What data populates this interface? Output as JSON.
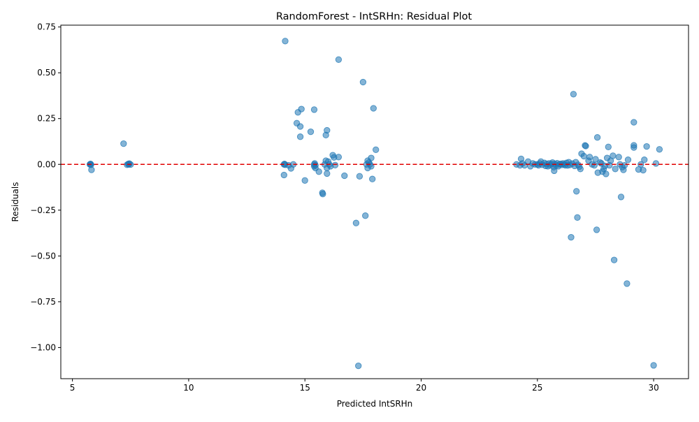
{
  "chart_data": {
    "type": "scatter",
    "title": "RandomForest - IntSRHn: Residual Plot",
    "xlabel": "Predicted IntSRHn",
    "ylabel": "Residuals",
    "xlim": [
      4.5,
      31.5
    ],
    "ylim": [
      -1.17,
      0.76
    ],
    "xticks": [
      5,
      10,
      15,
      20,
      25,
      30
    ],
    "xtick_labels": [
      "5",
      "10",
      "15",
      "20",
      "25",
      "30"
    ],
    "yticks": [
      0.75,
      0.5,
      0.25,
      0.0,
      -0.25,
      -0.5,
      -0.75,
      -1.0
    ],
    "ytick_labels": [
      "0.75",
      "0.50",
      "0.25",
      "0.00",
      "−0.25",
      "−0.50",
      "−0.75",
      "−1.00"
    ],
    "grid": false,
    "reference_line": {
      "y": 0,
      "style": "dashed",
      "color": "#e00000"
    },
    "point_color": "#1f77b4",
    "point_alpha": 0.55,
    "series": [
      {
        "points": [
          [
            5.75,
            0.0
          ],
          [
            5.78,
            0.002
          ],
          [
            5.8,
            -0.002
          ],
          [
            5.82,
            -0.03
          ],
          [
            5.77,
            0.001
          ],
          [
            7.2,
            0.113
          ],
          [
            7.35,
            -0.002
          ],
          [
            7.4,
            0.002
          ],
          [
            7.42,
            0.0
          ],
          [
            7.45,
            0.004
          ],
          [
            7.5,
            -0.001
          ],
          [
            14.1,
            0.0
          ],
          [
            14.12,
            0.002
          ],
          [
            14.15,
            -0.002
          ],
          [
            14.1,
            -0.058
          ],
          [
            14.15,
            0.673
          ],
          [
            14.3,
            -0.005
          ],
          [
            14.4,
            -0.022
          ],
          [
            14.5,
            0.0
          ],
          [
            14.65,
            0.225
          ],
          [
            14.7,
            0.284
          ],
          [
            14.8,
            0.207
          ],
          [
            14.8,
            0.151
          ],
          [
            14.85,
            0.302
          ],
          [
            15.0,
            -0.088
          ],
          [
            15.25,
            0.178
          ],
          [
            15.4,
            0.0
          ],
          [
            15.4,
            -0.01
          ],
          [
            15.42,
            0.005
          ],
          [
            15.45,
            -0.005
          ],
          [
            15.4,
            0.299
          ],
          [
            15.45,
            -0.02
          ],
          [
            15.6,
            -0.04
          ],
          [
            15.75,
            -0.155
          ],
          [
            15.77,
            -0.162
          ],
          [
            15.85,
            0.0
          ],
          [
            15.9,
            0.16
          ],
          [
            15.9,
            0.02
          ],
          [
            15.95,
            0.186
          ],
          [
            15.95,
            -0.05
          ],
          [
            15.95,
            -0.02
          ],
          [
            16.0,
            0.015
          ],
          [
            16.05,
            0.0
          ],
          [
            16.1,
            -0.01
          ],
          [
            16.2,
            0.05
          ],
          [
            16.25,
            0.038
          ],
          [
            16.3,
            -0.004
          ],
          [
            16.45,
            0.572
          ],
          [
            16.45,
            0.04
          ],
          [
            16.7,
            -0.062
          ],
          [
            17.2,
            -0.32
          ],
          [
            17.3,
            -1.1
          ],
          [
            17.35,
            -0.065
          ],
          [
            17.5,
            0.449
          ],
          [
            17.6,
            -0.28
          ],
          [
            17.65,
            0.0
          ],
          [
            17.7,
            0.02
          ],
          [
            17.7,
            -0.02
          ],
          [
            17.75,
            0.01
          ],
          [
            17.8,
            0.0
          ],
          [
            17.85,
            -0.01
          ],
          [
            17.85,
            0.035
          ],
          [
            17.9,
            -0.08
          ],
          [
            17.95,
            0.306
          ],
          [
            18.05,
            0.08
          ],
          [
            24.1,
            0.0
          ],
          [
            24.25,
            -0.005
          ],
          [
            24.3,
            0.03
          ],
          [
            24.35,
            0.005
          ],
          [
            24.45,
            -0.005
          ],
          [
            24.6,
            0.015
          ],
          [
            24.7,
            -0.01
          ],
          [
            24.8,
            0.005
          ],
          [
            24.9,
            0.0
          ],
          [
            25.0,
            0.0
          ],
          [
            25.05,
            -0.005
          ],
          [
            25.1,
            0.005
          ],
          [
            25.15,
            0.015
          ],
          [
            25.2,
            -0.002
          ],
          [
            25.3,
            0.008
          ],
          [
            25.35,
            -0.008
          ],
          [
            25.4,
            0.002
          ],
          [
            25.45,
            -0.01
          ],
          [
            25.5,
            0.005
          ],
          [
            25.55,
            -0.005
          ],
          [
            25.6,
            0.003
          ],
          [
            25.65,
            0.01
          ],
          [
            25.7,
            -0.015
          ],
          [
            25.72,
            -0.035
          ],
          [
            25.75,
            0.003
          ],
          [
            25.8,
            -0.006
          ],
          [
            25.85,
            0.006
          ],
          [
            25.9,
            -0.01
          ],
          [
            25.95,
            0.0
          ],
          [
            26.0,
            0.003
          ],
          [
            26.05,
            -0.003
          ],
          [
            26.1,
            0.005
          ],
          [
            26.15,
            0.0
          ],
          [
            26.2,
            -0.005
          ],
          [
            26.25,
            0.008
          ],
          [
            26.3,
            -0.006
          ],
          [
            26.35,
            0.012
          ],
          [
            26.4,
            -0.003
          ],
          [
            26.45,
            -0.398
          ],
          [
            26.5,
            0.004
          ],
          [
            26.55,
            0.383
          ],
          [
            26.6,
            -0.008
          ],
          [
            26.65,
            0.012
          ],
          [
            26.68,
            -0.147
          ],
          [
            26.72,
            -0.29
          ],
          [
            26.75,
            -0.002
          ],
          [
            26.8,
            -0.012
          ],
          [
            26.85,
            -0.025
          ],
          [
            26.9,
            0.058
          ],
          [
            27.0,
            0.045
          ],
          [
            27.05,
            0.103
          ],
          [
            27.08,
            0.1
          ],
          [
            27.2,
            0.02
          ],
          [
            27.25,
            0.04
          ],
          [
            27.35,
            0.0
          ],
          [
            27.45,
            -0.005
          ],
          [
            27.5,
            0.028
          ],
          [
            27.55,
            -0.357
          ],
          [
            27.58,
            0.147
          ],
          [
            27.6,
            -0.045
          ],
          [
            27.7,
            0.01
          ],
          [
            27.75,
            0.005
          ],
          [
            27.8,
            -0.04
          ],
          [
            27.85,
            -0.025
          ],
          [
            27.9,
            -0.008
          ],
          [
            27.95,
            -0.052
          ],
          [
            28.0,
            0.035
          ],
          [
            28.05,
            0.095
          ],
          [
            28.1,
            -0.005
          ],
          [
            28.15,
            0.02
          ],
          [
            28.25,
            0.047
          ],
          [
            28.3,
            -0.522
          ],
          [
            28.35,
            -0.025
          ],
          [
            28.5,
            0.04
          ],
          [
            28.55,
            0.0
          ],
          [
            28.6,
            -0.178
          ],
          [
            28.65,
            -0.015
          ],
          [
            28.7,
            -0.03
          ],
          [
            28.75,
            -0.005
          ],
          [
            28.85,
            -0.651
          ],
          [
            28.9,
            0.025
          ],
          [
            29.15,
            0.23
          ],
          [
            29.15,
            0.104
          ],
          [
            29.15,
            0.092
          ],
          [
            29.35,
            -0.028
          ],
          [
            29.45,
            0.0
          ],
          [
            29.55,
            -0.032
          ],
          [
            29.6,
            0.025
          ],
          [
            29.7,
            0.098
          ],
          [
            30.0,
            -1.097
          ],
          [
            30.1,
            0.005
          ],
          [
            30.25,
            0.082
          ]
        ]
      }
    ]
  }
}
